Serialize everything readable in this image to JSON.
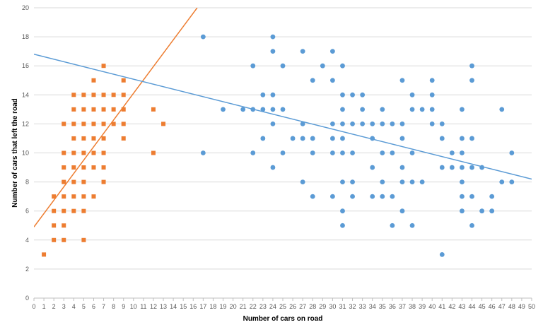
{
  "chart_data": {
    "type": "scatter",
    "xlabel": "Number of cars on road",
    "ylabel": "Number of cars that left the road",
    "xlim": [
      0,
      50
    ],
    "ylim": [
      0,
      20
    ],
    "x_ticks": [
      0,
      1,
      2,
      3,
      4,
      5,
      6,
      7,
      8,
      9,
      10,
      11,
      12,
      13,
      14,
      15,
      16,
      17,
      18,
      19,
      20,
      21,
      22,
      23,
      24,
      25,
      26,
      27,
      28,
      29,
      30,
      31,
      32,
      33,
      34,
      35,
      36,
      37,
      38,
      39,
      40,
      41,
      42,
      43,
      44,
      45,
      46,
      47,
      48,
      49,
      50
    ],
    "y_ticks": [
      0,
      2,
      4,
      6,
      8,
      10,
      12,
      14,
      16,
      18,
      20
    ],
    "grid": "horizontal",
    "legend": "none",
    "series": [
      {
        "marker": "square",
        "color": "#ED7D31",
        "points": [
          [
            1,
            3
          ],
          [
            2,
            4
          ],
          [
            2,
            5
          ],
          [
            2,
            6
          ],
          [
            2,
            7
          ],
          [
            3,
            4
          ],
          [
            3,
            5
          ],
          [
            3,
            6
          ],
          [
            3,
            7
          ],
          [
            3,
            8
          ],
          [
            3,
            9
          ],
          [
            3,
            10
          ],
          [
            3,
            12
          ],
          [
            4,
            6
          ],
          [
            4,
            7
          ],
          [
            4,
            8
          ],
          [
            4,
            9
          ],
          [
            4,
            10
          ],
          [
            4,
            11
          ],
          [
            4,
            12
          ],
          [
            4,
            13
          ],
          [
            4,
            14
          ],
          [
            5,
            4
          ],
          [
            5,
            6
          ],
          [
            5,
            7
          ],
          [
            5,
            8
          ],
          [
            5,
            9
          ],
          [
            5,
            10
          ],
          [
            5,
            11
          ],
          [
            5,
            12
          ],
          [
            5,
            13
          ],
          [
            5,
            14
          ],
          [
            6,
            7
          ],
          [
            6,
            9
          ],
          [
            6,
            10
          ],
          [
            6,
            11
          ],
          [
            6,
            12
          ],
          [
            6,
            13
          ],
          [
            6,
            14
          ],
          [
            6,
            15
          ],
          [
            7,
            8
          ],
          [
            7,
            9
          ],
          [
            7,
            10
          ],
          [
            7,
            11
          ],
          [
            7,
            12
          ],
          [
            7,
            13
          ],
          [
            7,
            14
          ],
          [
            7,
            16
          ],
          [
            8,
            12
          ],
          [
            8,
            13
          ],
          [
            8,
            14
          ],
          [
            9,
            11
          ],
          [
            9,
            12
          ],
          [
            9,
            13
          ],
          [
            9,
            14
          ],
          [
            9,
            15
          ],
          [
            12,
            10
          ],
          [
            12,
            13
          ],
          [
            13,
            12
          ]
        ],
        "trendline": {
          "x": [
            0,
            16.4
          ],
          "y": [
            4.9,
            20
          ]
        }
      },
      {
        "marker": "circle",
        "color": "#5B9BD5",
        "points": [
          [
            17,
            10
          ],
          [
            17,
            18
          ],
          [
            19,
            13
          ],
          [
            21,
            13
          ],
          [
            22,
            10
          ],
          [
            22,
            13
          ],
          [
            22,
            16
          ],
          [
            23,
            11
          ],
          [
            23,
            13
          ],
          [
            23,
            14
          ],
          [
            24,
            9
          ],
          [
            24,
            12
          ],
          [
            24,
            13
          ],
          [
            24,
            14
          ],
          [
            24,
            17
          ],
          [
            24,
            18
          ],
          [
            25,
            10
          ],
          [
            25,
            13
          ],
          [
            25,
            16
          ],
          [
            26,
            11
          ],
          [
            27,
            8
          ],
          [
            27,
            11
          ],
          [
            27,
            12
          ],
          [
            27,
            17
          ],
          [
            28,
            7
          ],
          [
            28,
            10
          ],
          [
            28,
            11
          ],
          [
            28,
            15
          ],
          [
            29,
            16
          ],
          [
            30,
            7
          ],
          [
            30,
            10
          ],
          [
            30,
            11
          ],
          [
            30,
            12
          ],
          [
            30,
            15
          ],
          [
            30,
            17
          ],
          [
            31,
            5
          ],
          [
            31,
            6
          ],
          [
            31,
            8
          ],
          [
            31,
            10
          ],
          [
            31,
            11
          ],
          [
            31,
            12
          ],
          [
            31,
            13
          ],
          [
            31,
            14
          ],
          [
            31,
            16
          ],
          [
            32,
            7
          ],
          [
            32,
            8
          ],
          [
            32,
            10
          ],
          [
            32,
            12
          ],
          [
            32,
            14
          ],
          [
            33,
            12
          ],
          [
            33,
            13
          ],
          [
            33,
            14
          ],
          [
            34,
            7
          ],
          [
            34,
            9
          ],
          [
            34,
            11
          ],
          [
            34,
            12
          ],
          [
            35,
            7
          ],
          [
            35,
            8
          ],
          [
            35,
            10
          ],
          [
            35,
            12
          ],
          [
            35,
            13
          ],
          [
            36,
            5
          ],
          [
            36,
            7
          ],
          [
            36,
            10
          ],
          [
            36,
            12
          ],
          [
            37,
            6
          ],
          [
            37,
            8
          ],
          [
            37,
            9
          ],
          [
            37,
            11
          ],
          [
            37,
            12
          ],
          [
            37,
            15
          ],
          [
            38,
            5
          ],
          [
            38,
            8
          ],
          [
            38,
            10
          ],
          [
            38,
            13
          ],
          [
            38,
            14
          ],
          [
            39,
            8
          ],
          [
            39,
            13
          ],
          [
            40,
            12
          ],
          [
            40,
            13
          ],
          [
            40,
            14
          ],
          [
            40,
            15
          ],
          [
            41,
            3
          ],
          [
            41,
            9
          ],
          [
            41,
            11
          ],
          [
            41,
            12
          ],
          [
            42,
            9
          ],
          [
            42,
            10
          ],
          [
            43,
            6
          ],
          [
            43,
            7
          ],
          [
            43,
            8
          ],
          [
            43,
            9
          ],
          [
            43,
            10
          ],
          [
            43,
            11
          ],
          [
            43,
            13
          ],
          [
            44,
            5
          ],
          [
            44,
            7
          ],
          [
            44,
            9
          ],
          [
            44,
            11
          ],
          [
            44,
            15
          ],
          [
            44,
            16
          ],
          [
            45,
            6
          ],
          [
            45,
            9
          ],
          [
            46,
            6
          ],
          [
            46,
            7
          ],
          [
            47,
            8
          ],
          [
            47,
            13
          ],
          [
            48,
            8
          ],
          [
            48,
            10
          ]
        ],
        "trendline": {
          "x": [
            0,
            50
          ],
          "y": [
            16.8,
            8.2
          ]
        }
      }
    ]
  }
}
